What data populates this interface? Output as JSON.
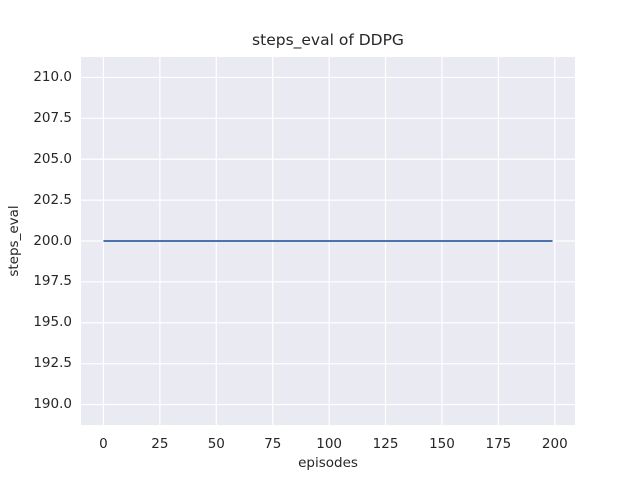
{
  "chart_data": {
    "type": "line",
    "title": "steps_eval of DDPG",
    "xlabel": "episodes",
    "ylabel": "steps_eval",
    "xlim": [
      -9.95,
      208.95
    ],
    "ylim": [
      188.75,
      211.25
    ],
    "x_tick_values": [
      0,
      25,
      50,
      75,
      100,
      125,
      150,
      175,
      200
    ],
    "x_tick_labels": [
      "0",
      "25",
      "50",
      "75",
      "100",
      "125",
      "150",
      "175",
      "200"
    ],
    "y_tick_values": [
      190.0,
      192.5,
      195.0,
      197.5,
      200.0,
      202.5,
      205.0,
      207.5,
      210.0
    ],
    "y_tick_labels": [
      "190.0",
      "192.5",
      "195.0",
      "197.5",
      "200.0",
      "202.5",
      "205.0",
      "207.5",
      "210.0"
    ],
    "grid": true,
    "legend": "none",
    "series": [
      {
        "name": "DDPG",
        "color": "#4c72b0",
        "line_width": 2,
        "x": [
          0,
          199
        ],
        "y": [
          200,
          200
        ]
      }
    ],
    "colors": {
      "figure_bg": "#ffffff",
      "axes_bg": "#eaeaf2",
      "grid": "#ffffff",
      "text": "#262626"
    }
  }
}
